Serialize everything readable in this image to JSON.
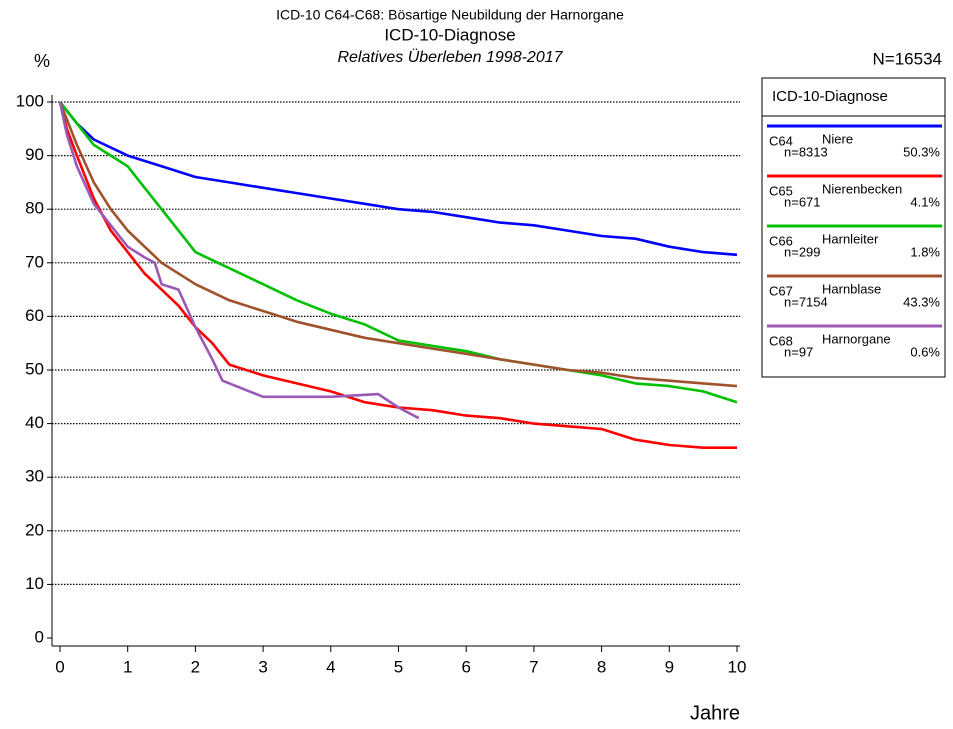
{
  "chart_data": {
    "type": "line",
    "title": "ICD-10 C64-C68: Bösartige Neubildung der Harnorgane",
    "subtitle": "ICD-10-Diagnose",
    "subtitle2": "Relatives Überleben 1998-2017",
    "ylabel": "%",
    "xlabel": "Jahre",
    "total": "N=16534",
    "legend_title": "ICD-10-Diagnose",
    "xlim": [
      0,
      10
    ],
    "xticks": [
      0,
      1,
      2,
      3,
      4,
      5,
      6,
      7,
      8,
      9,
      10
    ],
    "ylim": [
      0,
      100
    ],
    "yticks": [
      0,
      10,
      20,
      30,
      40,
      50,
      60,
      70,
      80,
      90,
      100
    ],
    "grid": true,
    "series": [
      {
        "name": "C64",
        "label": "Niere",
        "n": "n=8313",
        "share": "50.3%",
        "color": "#0000ff",
        "x": [
          0,
          0.25,
          0.5,
          1,
          1.5,
          2,
          2.5,
          3,
          3.5,
          4,
          4.5,
          5,
          5.5,
          6,
          6.5,
          7,
          7.5,
          8,
          8.5,
          9,
          9.5,
          10
        ],
        "values": [
          100,
          96,
          93,
          90,
          88,
          86,
          85,
          84,
          83,
          82,
          81,
          80,
          79.5,
          78.5,
          77.5,
          77,
          76,
          75,
          74.5,
          73,
          72,
          71.5
        ]
      },
      {
        "name": "C65",
        "label": "Nierenbecken",
        "n": "n=671",
        "share": "4.1%",
        "color": "#ff0000",
        "x": [
          0,
          0.1,
          0.25,
          0.5,
          0.75,
          1,
          1.25,
          1.5,
          1.75,
          2,
          2.25,
          2.5,
          3,
          3.5,
          4,
          4.5,
          5,
          5.5,
          6,
          6.5,
          7,
          7.5,
          8,
          8.5,
          9,
          9.5,
          10
        ],
        "values": [
          100,
          95,
          90,
          82,
          76,
          72,
          68,
          65,
          62,
          58,
          55,
          51,
          49,
          47.5,
          46,
          44,
          43,
          42.5,
          41.5,
          41,
          40,
          39.5,
          39,
          37,
          36,
          35.5,
          35.5
        ]
      },
      {
        "name": "C66",
        "label": "Harnleiter",
        "n": "n=299",
        "share": "1.8%",
        "color": "#00c000",
        "x": [
          0,
          0.25,
          0.5,
          0.75,
          1,
          1.25,
          1.5,
          1.75,
          2,
          2.5,
          3,
          3.5,
          4,
          4.5,
          5,
          5.5,
          6,
          6.5,
          7,
          7.5,
          8,
          8.5,
          9,
          9.5,
          10
        ],
        "values": [
          100,
          96,
          92,
          90,
          88,
          84,
          80,
          76,
          72,
          69,
          66,
          63,
          60.5,
          58.5,
          55.5,
          54.5,
          53.5,
          52,
          51,
          50,
          49,
          47.5,
          47,
          46,
          44
        ]
      },
      {
        "name": "C67",
        "label": "Harnblase",
        "n": "n=7154",
        "share": "43.3%",
        "color": "#a0522d",
        "x": [
          0,
          0.25,
          0.5,
          0.75,
          1,
          1.5,
          2,
          2.5,
          3,
          3.5,
          4,
          4.5,
          5,
          5.5,
          6,
          6.5,
          7,
          7.5,
          8,
          8.5,
          9,
          9.5,
          10
        ],
        "values": [
          100,
          92,
          85,
          80,
          76,
          70,
          66,
          63,
          61,
          59,
          57.5,
          56,
          55,
          54,
          53,
          52,
          51,
          50,
          49.5,
          48.5,
          48,
          47.5,
          47
        ]
      },
      {
        "name": "C68",
        "label": "Harnorgane",
        "n": "n=97",
        "share": "0.6%",
        "color": "#9b59b6",
        "x": [
          0,
          0.1,
          0.25,
          0.5,
          0.75,
          1,
          1.25,
          1.4,
          1.5,
          1.75,
          2,
          2.25,
          2.4,
          3,
          4,
          4.7,
          5,
          5.3
        ],
        "values": [
          100,
          94,
          88,
          81,
          77,
          73,
          71,
          70,
          66,
          65,
          58,
          52,
          48,
          45,
          45,
          45.5,
          43,
          41
        ]
      }
    ]
  }
}
